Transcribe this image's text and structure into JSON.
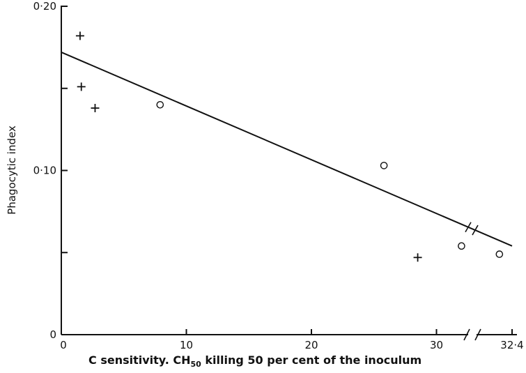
{
  "chart_data": {
    "type": "scatter",
    "title": "",
    "xlabel_prefix": "C sensitivity. CH",
    "xlabel_sub": "50",
    "xlabel_suffix": " killing 50 per cent of the inoculum",
    "ylabel": "Phagocytic index",
    "xlim": [
      0,
      32.4
    ],
    "ylim": [
      0,
      0.2
    ],
    "x_axis_break_after": 32,
    "y_ticks": [
      0,
      0.05,
      0.1,
      0.15,
      0.2
    ],
    "y_tick_labels": [
      "0",
      "",
      "0·10",
      "",
      "0·20"
    ],
    "x_ticks": [
      0,
      10,
      20,
      30,
      32.4
    ],
    "x_tick_labels": [
      "0",
      "10",
      "20",
      "30",
      "32·4"
    ],
    "grid": false,
    "series": [
      {
        "marker": "plus",
        "points": [
          {
            "x": 1.5,
            "y": 0.182
          },
          {
            "x": 1.6,
            "y": 0.151
          },
          {
            "x": 2.7,
            "y": 0.138
          },
          {
            "x": 28.5,
            "y": 0.047
          }
        ]
      },
      {
        "marker": "circle",
        "points": [
          {
            "x": 7.9,
            "y": 0.14
          },
          {
            "x": 25.8,
            "y": 0.103
          },
          {
            "x": 32.0,
            "y": 0.054
          },
          {
            "x": 32.3,
            "y": 0.049
          }
        ]
      }
    ],
    "trend_line": {
      "x": [
        0,
        32.4
      ],
      "y": [
        0.172,
        0.054
      ]
    }
  }
}
